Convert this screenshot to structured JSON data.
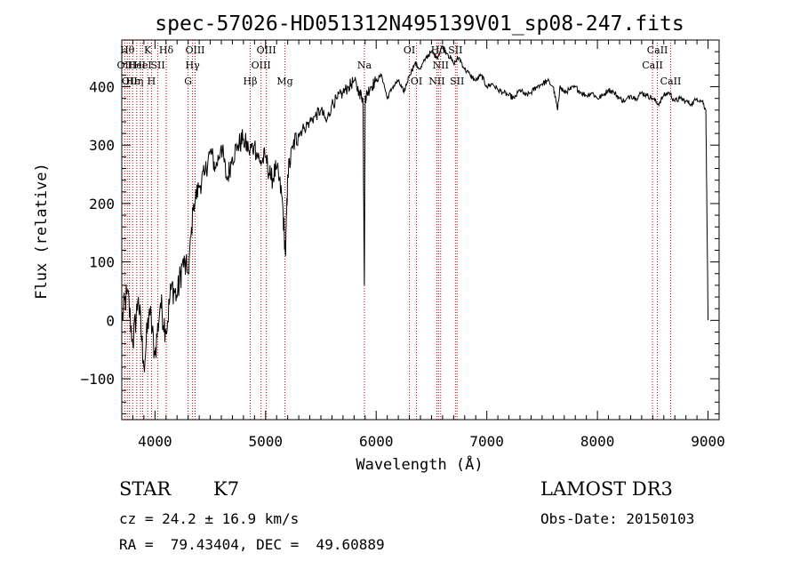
{
  "chart_data": {
    "type": "line",
    "title": "spec-57026-HD051312N495139V01_sp08-247.fits",
    "xlabel": "Wavelength (Å)",
    "ylabel": "Flux (relative)",
    "xlim": [
      3700,
      9100
    ],
    "ylim": [
      -170,
      480
    ],
    "xticks": [
      4000,
      5000,
      6000,
      7000,
      8000,
      9000
    ],
    "yticks": [
      -100,
      0,
      100,
      200,
      300,
      400
    ],
    "series": [
      {
        "name": "flux",
        "x": [
          3700,
          3750,
          3800,
          3850,
          3900,
          3950,
          4000,
          4050,
          4100,
          4150,
          4200,
          4250,
          4300,
          4350,
          4400,
          4450,
          4500,
          4550,
          4600,
          4650,
          4700,
          4750,
          4800,
          4850,
          4900,
          4950,
          5000,
          5050,
          5100,
          5150,
          5180,
          5200,
          5250,
          5300,
          5350,
          5400,
          5450,
          5500,
          5550,
          5600,
          5650,
          5700,
          5750,
          5800,
          5850,
          5880,
          5893,
          5900,
          5920,
          5950,
          6000,
          6050,
          6100,
          6150,
          6200,
          6250,
          6300,
          6350,
          6400,
          6450,
          6500,
          6550,
          6600,
          6650,
          6700,
          6750,
          6800,
          6850,
          6900,
          6950,
          7000,
          7050,
          7100,
          7150,
          7200,
          7250,
          7300,
          7350,
          7400,
          7450,
          7500,
          7550,
          7600,
          7640,
          7660,
          7700,
          7750,
          7800,
          7850,
          7900,
          7950,
          8000,
          8050,
          8100,
          8150,
          8200,
          8250,
          8300,
          8350,
          8400,
          8450,
          8500,
          8550,
          8600,
          8650,
          8700,
          8750,
          8800,
          8850,
          8900,
          8950,
          8980,
          9000
        ],
        "y": [
          0,
          50,
          -40,
          40,
          -80,
          20,
          -60,
          30,
          -20,
          60,
          40,
          100,
          80,
          200,
          230,
          250,
          290,
          260,
          300,
          240,
          280,
          300,
          310,
          290,
          300,
          270,
          280,
          240,
          260,
          210,
          110,
          250,
          300,
          320,
          330,
          340,
          350,
          360,
          340,
          370,
          380,
          390,
          400,
          410,
          390,
          380,
          60,
          380,
          390,
          400,
          410,
          420,
          380,
          400,
          410,
          390,
          420,
          440,
          430,
          450,
          460,
          450,
          470,
          455,
          440,
          450,
          430,
          420,
          410,
          420,
          400,
          405,
          395,
          390,
          385,
          380,
          395,
          385,
          390,
          400,
          405,
          410,
          400,
          360,
          400,
          390,
          395,
          400,
          390,
          385,
          390,
          380,
          385,
          395,
          390,
          380,
          375,
          385,
          380,
          390,
          385,
          380,
          370,
          385,
          390,
          375,
          380,
          375,
          370,
          380,
          375,
          360,
          0
        ]
      }
    ],
    "lines": [
      {
        "x": 3727,
        "labels": [
          "OII"
        ],
        "row": 2
      },
      {
        "x": 3750,
        "labels": [
          "Hθ"
        ],
        "row": 1
      },
      {
        "x": 3770,
        "labels": [
          "OII"
        ],
        "row": 3
      },
      {
        "x": 3798,
        "labels": [
          "Hε"
        ],
        "row": 3
      },
      {
        "x": 3835,
        "labels": [
          "HeI"
        ],
        "row": 2
      },
      {
        "x": 3869,
        "labels": [
          "η"
        ],
        "row": 3
      },
      {
        "x": 3889,
        "labels": [
          "HeI"
        ],
        "row": 2
      },
      {
        "x": 3934,
        "labels": [
          "K"
        ],
        "row": 1
      },
      {
        "x": 3969,
        "labels": [
          "H"
        ],
        "row": 3
      },
      {
        "x": 4026,
        "labels": [
          "SII"
        ],
        "row": 2
      },
      {
        "x": 4102,
        "labels": [
          "Hδ"
        ],
        "row": 1
      },
      {
        "x": 4300,
        "labels": [
          "G"
        ],
        "row": 3
      },
      {
        "x": 4340,
        "labels": [
          "Hγ"
        ],
        "row": 2
      },
      {
        "x": 4363,
        "labels": [
          "OIII"
        ],
        "row": 1
      },
      {
        "x": 4861,
        "labels": [
          "Hβ"
        ],
        "row": 3
      },
      {
        "x": 4959,
        "labels": [
          "OIII"
        ],
        "row": 2
      },
      {
        "x": 5007,
        "labels": [
          "OIII"
        ],
        "row": 1
      },
      {
        "x": 5175,
        "labels": [
          "Mg"
        ],
        "row": 3
      },
      {
        "x": 5893,
        "labels": [
          "Na"
        ],
        "row": 2
      },
      {
        "x": 6300,
        "labels": [
          "OI"
        ],
        "row": 1
      },
      {
        "x": 6364,
        "labels": [
          "OI"
        ],
        "row": 3
      },
      {
        "x": 6548,
        "labels": [
          "NII"
        ],
        "row": 3
      },
      {
        "x": 6563,
        "labels": [
          "Hα"
        ],
        "row": 1
      },
      {
        "x": 6583,
        "labels": [
          "NII"
        ],
        "row": 2
      },
      {
        "x": 6716,
        "labels": [
          "SII"
        ],
        "row": 1
      },
      {
        "x": 6731,
        "labels": [
          "SII"
        ],
        "row": 3
      },
      {
        "x": 8498,
        "labels": [
          "CaII"
        ],
        "row": 2
      },
      {
        "x": 8542,
        "labels": [
          "CaII"
        ],
        "row": 1
      },
      {
        "x": 8662,
        "labels": [
          "CaII"
        ],
        "row": 3
      }
    ],
    "line_color": "#c00000",
    "info": {
      "class": "STAR",
      "subclass": "K7",
      "survey": "LAMOST DR3",
      "cz": "cz = 24.2 ± 16.9 km/s",
      "obs_date": "Obs-Date: 20150103",
      "radec": "RA =  79.43404, DEC =  49.60889"
    }
  }
}
